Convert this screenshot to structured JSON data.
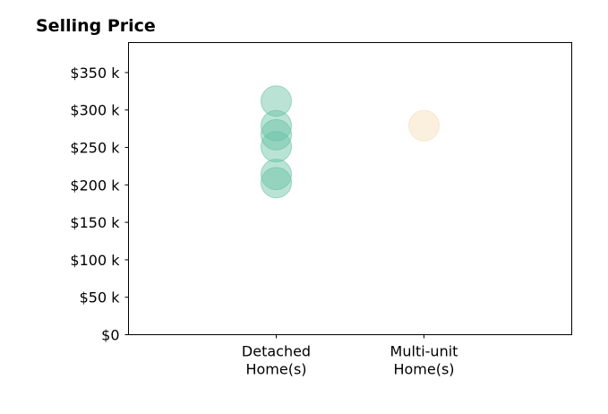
{
  "chart_data": {
    "type": "scatter",
    "title": "Selling Price",
    "xlabel": "",
    "ylabel": "",
    "categories": [
      {
        "line1": "Detached",
        "line2": "Home(s)"
      },
      {
        "line1": "Multi-unit",
        "line2": "Home(s)"
      }
    ],
    "xlim": [
      0,
      3
    ],
    "ylim": [
      0,
      390000
    ],
    "yticks": [
      {
        "value": 0,
        "label": "$0"
      },
      {
        "value": 50000,
        "label": "$50 k"
      },
      {
        "value": 100000,
        "label": "$100 k"
      },
      {
        "value": 150000,
        "label": "$150 k"
      },
      {
        "value": 200000,
        "label": "$200 k"
      },
      {
        "value": 250000,
        "label": "$250 k"
      },
      {
        "value": 300000,
        "label": "$300 k"
      },
      {
        "value": 350000,
        "label": "$350 k"
      }
    ],
    "grid": false,
    "legend": "none",
    "series": [
      {
        "color": "#66c2a5",
        "points": [
          {
            "x": 1,
            "y": 312000
          },
          {
            "x": 1,
            "y": 279000
          },
          {
            "x": 1,
            "y": 267000
          },
          {
            "x": 1,
            "y": 251000
          },
          {
            "x": 1,
            "y": 214000
          },
          {
            "x": 1,
            "y": 203000
          }
        ]
      },
      {
        "color": "#f5deb3",
        "points": [
          {
            "x": 2,
            "y": 279000
          }
        ]
      }
    ]
  }
}
